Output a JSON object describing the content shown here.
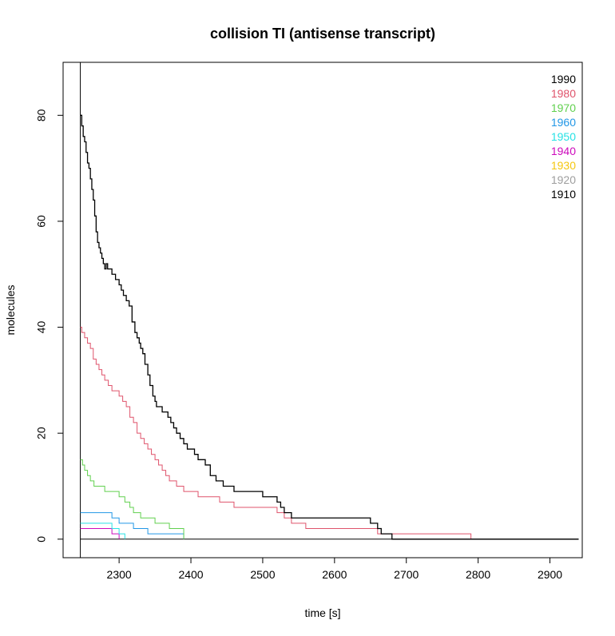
{
  "chart_data": {
    "type": "line",
    "step": true,
    "title": "collision TI (antisense transcript)",
    "xlabel": "time [s]",
    "ylabel": "molecules",
    "xlim": [
      2222,
      2945
    ],
    "ylim": [
      -3.5,
      90
    ],
    "x_ticks": [
      2300,
      2400,
      2500,
      2600,
      2700,
      2800,
      2900
    ],
    "y_ticks": [
      0,
      20,
      40,
      60,
      80
    ],
    "vline_x": 2246,
    "legend_position": "top-right",
    "legend": [
      {
        "label": "1990",
        "color": "#000000"
      },
      {
        "label": "1980",
        "color": "#DF536B"
      },
      {
        "label": "1970",
        "color": "#61D04F"
      },
      {
        "label": "1960",
        "color": "#2297E6"
      },
      {
        "label": "1950",
        "color": "#28E2E5"
      },
      {
        "label": "1940",
        "color": "#CD0BBC"
      },
      {
        "label": "1930",
        "color": "#F5C710"
      },
      {
        "label": "1920",
        "color": "#9E9E9E"
      },
      {
        "label": "1910",
        "color": "#000000"
      }
    ],
    "series": [
      {
        "color": "#000000",
        "x": [
          2246,
          2248,
          2250,
          2252,
          2254,
          2256,
          2258,
          2260,
          2262,
          2264,
          2266,
          2268,
          2270,
          2272,
          2274,
          2276,
          2278,
          2280,
          2282,
          2284,
          2286,
          2290,
          2295,
          2300,
          2303,
          2306,
          2310,
          2314,
          2318,
          2322,
          2325,
          2328,
          2330,
          2333,
          2336,
          2340,
          2343,
          2347,
          2350,
          2352,
          2356,
          2360,
          2364,
          2368,
          2372,
          2376,
          2380,
          2385,
          2390,
          2395,
          2400,
          2405,
          2410,
          2420,
          2427,
          2435,
          2440,
          2445,
          2450,
          2455,
          2460,
          2465,
          2470,
          2480,
          2500,
          2520,
          2525,
          2530,
          2535,
          2540,
          2560,
          2600,
          2650,
          2660,
          2665,
          2680,
          2940
        ],
        "y": [
          80,
          78,
          76,
          75,
          73,
          71,
          70,
          68,
          66,
          64,
          61,
          58,
          56,
          55,
          54,
          53,
          52,
          51,
          52,
          51,
          51,
          50,
          49,
          48,
          47,
          46,
          45,
          44,
          41,
          39,
          38,
          37,
          36,
          35,
          33,
          31,
          29,
          27,
          26,
          25,
          25,
          24,
          24,
          23,
          22,
          21,
          20,
          19,
          18,
          17,
          17,
          16,
          15,
          14,
          12,
          11,
          11,
          10,
          10,
          10,
          9,
          9,
          9,
          9,
          8,
          7,
          6,
          5,
          5,
          4,
          4,
          4,
          3,
          2,
          1,
          0,
          0
        ]
      },
      {
        "color": "#DF536B",
        "x": [
          2246,
          2248,
          2252,
          2256,
          2260,
          2264,
          2268,
          2272,
          2276,
          2280,
          2285,
          2290,
          2295,
          2300,
          2305,
          2310,
          2315,
          2320,
          2325,
          2330,
          2335,
          2340,
          2345,
          2350,
          2355,
          2360,
          2365,
          2370,
          2380,
          2390,
          2400,
          2410,
          2420,
          2440,
          2460,
          2520,
          2530,
          2540,
          2560,
          2600,
          2650,
          2660,
          2700,
          2790
        ],
        "y": [
          40,
          39,
          38,
          37,
          36,
          34,
          33,
          32,
          31,
          30,
          29,
          28,
          28,
          27,
          26,
          25,
          23,
          22,
          20,
          19,
          18,
          17,
          16,
          15,
          14,
          13,
          12,
          11,
          10,
          9,
          9,
          8,
          8,
          7,
          6,
          5,
          4,
          3,
          2,
          2,
          2,
          1,
          1,
          0
        ]
      },
      {
        "color": "#61D04F",
        "x": [
          2246,
          2249,
          2252,
          2256,
          2260,
          2265,
          2270,
          2280,
          2290,
          2300,
          2308,
          2315,
          2320,
          2325,
          2330,
          2340,
          2350,
          2360,
          2370,
          2380,
          2390
        ],
        "y": [
          15,
          14,
          13,
          12,
          11,
          10,
          10,
          9,
          9,
          8,
          7,
          6,
          5,
          5,
          4,
          4,
          3,
          3,
          2,
          2,
          0
        ]
      },
      {
        "color": "#2297E6",
        "x": [
          2246,
          2260,
          2275,
          2290,
          2300,
          2320,
          2340,
          2360,
          2390
        ],
        "y": [
          5,
          5,
          5,
          4,
          3,
          2,
          1,
          1,
          0
        ]
      },
      {
        "color": "#28E2E5",
        "x": [
          2246,
          2270,
          2290,
          2300,
          2308
        ],
        "y": [
          3,
          3,
          2,
          1,
          0
        ]
      },
      {
        "color": "#CD0BBC",
        "x": [
          2246,
          2270,
          2290,
          2300
        ],
        "y": [
          2,
          2,
          1,
          0
        ]
      }
    ]
  }
}
